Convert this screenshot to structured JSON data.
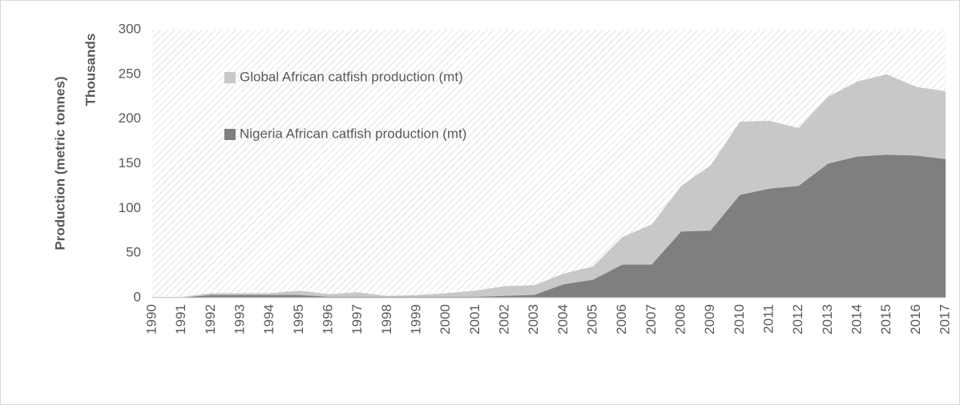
{
  "chart_data": {
    "type": "area",
    "y_axis_title": "Production (metric tonnes)",
    "display_units": "Thousands",
    "categories": [
      "1990",
      "1991",
      "1992",
      "1993",
      "1994",
      "1995",
      "1996",
      "1997",
      "1998",
      "1999",
      "2000",
      "2001",
      "2002",
      "2003",
      "2004",
      "2005",
      "2006",
      "2007",
      "2008",
      "2009",
      "2010",
      "2011",
      "2012",
      "2013",
      "2014",
      "2015",
      "2016",
      "2017"
    ],
    "series": [
      {
        "name": "Global African catfish production (mt)",
        "color": "#c8c8c8",
        "values": [
          1,
          1,
          5,
          5,
          5,
          8,
          4,
          6,
          2,
          3,
          5,
          8,
          13,
          14,
          27,
          35,
          68,
          82,
          125,
          148,
          197,
          198,
          190,
          225,
          242,
          250,
          236,
          231
        ]
      },
      {
        "name": "Nigeria African catfish production (mt)",
        "color": "#7f7f7f",
        "values": [
          0,
          0,
          3,
          3,
          3,
          3,
          1,
          1,
          1,
          1,
          1,
          1,
          2,
          3,
          15,
          20,
          37,
          37,
          74,
          75,
          115,
          122,
          125,
          150,
          158,
          160,
          159,
          155
        ]
      }
    ],
    "ylim": [
      0,
      300
    ],
    "yticks": [
      0,
      50,
      100,
      150,
      200,
      250,
      300
    ],
    "legend": "top-left"
  }
}
